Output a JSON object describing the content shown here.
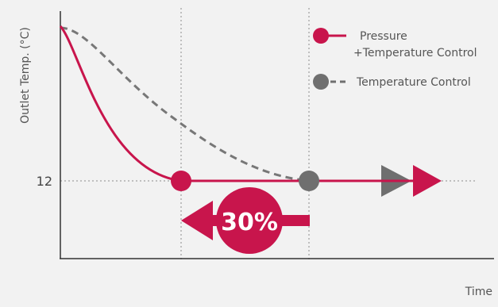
{
  "chart_data": {
    "type": "line",
    "ylabel": "Outlet Temp. (°C)",
    "xlabel": "Time",
    "y_tick_labels": [
      "12"
    ],
    "grid": "dotted reference lines",
    "legend_position": "top-right",
    "annotation": "30%",
    "series": [
      {
        "name": "Pressure\n+Temperature Control",
        "name_line1": "Pressure",
        "name_line2": "+Temperature Control",
        "color": "#c8154c",
        "style": "solid"
      },
      {
        "name": "Temperature Control",
        "color": "#6f6f6f",
        "style": "dashed"
      }
    ]
  },
  "colors": {
    "accent": "#c8154c",
    "gray": "#6f6f6f",
    "axis": "#333333",
    "background": "#f2f2f2"
  }
}
